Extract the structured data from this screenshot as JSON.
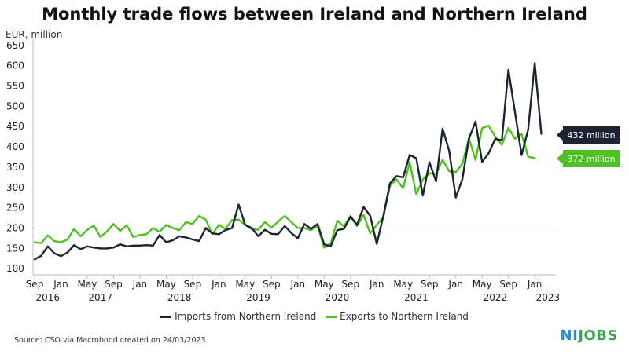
{
  "chart_data": {
    "type": "line",
    "title": "Monthly trade flows between Ireland and Northern Ireland",
    "ylabel": "EUR, million",
    "ylim": [
      85,
      665
    ],
    "yticks": [
      100,
      150,
      200,
      250,
      300,
      350,
      400,
      450,
      500,
      550,
      600,
      650
    ],
    "reference_line": 200,
    "x_tick_labels": [
      "Sep",
      "Jan",
      "May",
      "Sep",
      "Jan",
      "May",
      "Sep",
      "Jan",
      "May",
      "Sep",
      "Jan",
      "May",
      "Sep",
      "Jan",
      "May",
      "Sep",
      "Jan",
      "May",
      "Sep",
      "Jan"
    ],
    "x_tick_month_index": [
      0,
      4,
      8,
      12,
      16,
      20,
      24,
      28,
      32,
      36,
      40,
      44,
      48,
      52,
      56,
      60,
      64,
      68,
      72,
      76
    ],
    "year_labels": [
      {
        "label": "2016",
        "month_index": 2
      },
      {
        "label": "2017",
        "month_index": 10
      },
      {
        "label": "2018",
        "month_index": 22
      },
      {
        "label": "2019",
        "month_index": 34
      },
      {
        "label": "2020",
        "month_index": 46
      },
      {
        "label": "2021",
        "month_index": 58
      },
      {
        "label": "2022",
        "month_index": 70
      },
      {
        "label": "2023",
        "month_index": 78
      }
    ],
    "x_start": "2016-09",
    "series": [
      {
        "name": "Imports from Northern Ireland",
        "color": "#1c2333",
        "end_label": "432 million",
        "values": [
          123,
          132,
          155,
          138,
          131,
          140,
          158,
          148,
          155,
          152,
          150,
          150,
          152,
          160,
          155,
          157,
          157,
          158,
          157,
          183,
          165,
          170,
          180,
          177,
          172,
          168,
          200,
          187,
          185,
          195,
          200,
          258,
          208,
          200,
          180,
          196,
          186,
          185,
          205,
          188,
          175,
          210,
          198,
          210,
          160,
          155,
          195,
          198,
          228,
          208,
          252,
          230,
          161,
          230,
          310,
          328,
          325,
          380,
          372,
          280,
          362,
          315,
          445,
          390,
          275,
          320,
          420,
          462,
          363,
          384,
          420,
          416,
          590,
          485,
          380,
          442,
          606,
          432
        ]
      },
      {
        "name": "Exports to Northern Ireland",
        "color": "#4fc021",
        "end_label": "372 million",
        "values": [
          165,
          163,
          182,
          168,
          165,
          172,
          198,
          180,
          196,
          206,
          178,
          192,
          210,
          193,
          207,
          178,
          183,
          185,
          200,
          191,
          208,
          200,
          195,
          215,
          210,
          230,
          221,
          185,
          208,
          198,
          220,
          221,
          208,
          197,
          196,
          215,
          201,
          216,
          230,
          215,
          200,
          200,
          195,
          205,
          152,
          162,
          218,
          204,
          230,
          205,
          232,
          187,
          208,
          227,
          304,
          320,
          298,
          362,
          283,
          320,
          335,
          333,
          368,
          340,
          338,
          358,
          421,
          368,
          446,
          452,
          425,
          405,
          447,
          420,
          432,
          376,
          372
        ]
      }
    ],
    "legend_position": "bottom",
    "grid": false
  },
  "source": "Source: CSO via Macrobond created on 24/03/2023",
  "logo": {
    "part1": "NI",
    "part2": "JOBS"
  }
}
